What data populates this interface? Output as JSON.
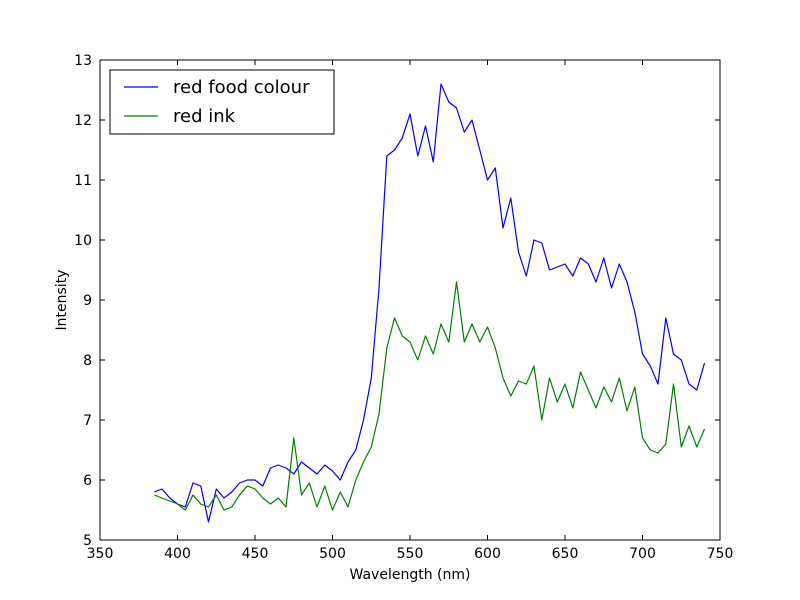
{
  "chart_data": {
    "type": "line",
    "title": "",
    "xlabel": "Wavelength (nm)",
    "ylabel": "Intensity",
    "xlim": [
      350,
      750
    ],
    "ylim": [
      5,
      13
    ],
    "xticks": [
      350,
      400,
      450,
      500,
      550,
      600,
      650,
      700,
      750
    ],
    "yticks": [
      5,
      6,
      7,
      8,
      9,
      10,
      11,
      12,
      13
    ],
    "grid": false,
    "legend_position": "top-left",
    "series": [
      {
        "name": "red food colour",
        "color": "#0000ff",
        "x": [
          385,
          390,
          395,
          400,
          405,
          410,
          415,
          420,
          425,
          430,
          435,
          440,
          445,
          450,
          455,
          460,
          465,
          470,
          475,
          480,
          485,
          490,
          495,
          500,
          505,
          510,
          515,
          520,
          525,
          530,
          535,
          540,
          545,
          550,
          555,
          560,
          565,
          570,
          575,
          580,
          585,
          590,
          595,
          600,
          605,
          610,
          615,
          620,
          625,
          630,
          635,
          640,
          645,
          650,
          655,
          660,
          665,
          670,
          675,
          680,
          685,
          690,
          695,
          700,
          705,
          710,
          715,
          720,
          725,
          730,
          735,
          740
        ],
        "y": [
          5.8,
          5.85,
          5.7,
          5.6,
          5.55,
          5.95,
          5.9,
          5.3,
          5.85,
          5.7,
          5.8,
          5.95,
          6.0,
          6.0,
          5.9,
          6.2,
          6.25,
          6.2,
          6.1,
          6.3,
          6.2,
          6.1,
          6.25,
          6.15,
          6.0,
          6.3,
          6.5,
          7.0,
          7.7,
          9.2,
          11.4,
          11.5,
          11.7,
          12.1,
          11.4,
          11.9,
          11.3,
          12.6,
          12.3,
          12.2,
          11.8,
          12.0,
          11.5,
          11.0,
          11.2,
          10.2,
          10.7,
          9.8,
          9.4,
          10.0,
          9.95,
          9.5,
          9.55,
          9.6,
          9.4,
          9.7,
          9.6,
          9.3,
          9.7,
          9.2,
          9.6,
          9.3,
          8.8,
          8.1,
          7.9,
          7.6,
          8.7,
          8.1,
          8.0,
          7.6,
          7.5,
          7.95
        ]
      },
      {
        "name": "red ink",
        "color": "#008000",
        "x": [
          385,
          390,
          395,
          400,
          405,
          410,
          415,
          420,
          425,
          430,
          435,
          440,
          445,
          450,
          455,
          460,
          465,
          470,
          475,
          480,
          485,
          490,
          495,
          500,
          505,
          510,
          515,
          520,
          525,
          530,
          535,
          540,
          545,
          550,
          555,
          560,
          565,
          570,
          575,
          580,
          585,
          590,
          595,
          600,
          605,
          610,
          615,
          620,
          625,
          630,
          635,
          640,
          645,
          650,
          655,
          660,
          665,
          670,
          675,
          680,
          685,
          690,
          695,
          700,
          705,
          710,
          715,
          720,
          725,
          730,
          735,
          740
        ],
        "y": [
          5.75,
          5.7,
          5.65,
          5.6,
          5.5,
          5.75,
          5.6,
          5.55,
          5.75,
          5.5,
          5.55,
          5.75,
          5.9,
          5.85,
          5.7,
          5.6,
          5.7,
          5.55,
          6.7,
          5.75,
          5.95,
          5.55,
          5.9,
          5.5,
          5.8,
          5.55,
          6.0,
          6.3,
          6.55,
          7.1,
          8.2,
          8.7,
          8.4,
          8.3,
          8.0,
          8.4,
          8.1,
          8.6,
          8.3,
          9.3,
          8.3,
          8.6,
          8.3,
          8.55,
          8.2,
          7.7,
          7.4,
          7.65,
          7.6,
          7.9,
          7.0,
          7.7,
          7.3,
          7.6,
          7.2,
          7.8,
          7.5,
          7.2,
          7.55,
          7.3,
          7.7,
          7.15,
          7.55,
          6.7,
          6.5,
          6.45,
          6.6,
          7.6,
          6.55,
          6.9,
          6.55,
          6.85
        ]
      }
    ]
  }
}
